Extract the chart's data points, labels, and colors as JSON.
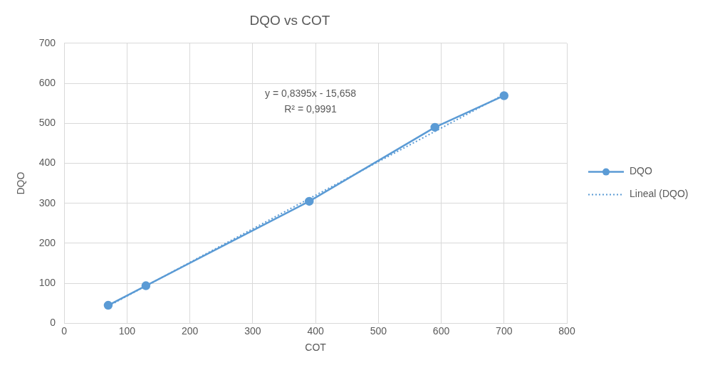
{
  "chart_data": {
    "type": "scatter",
    "title": "DQO vs COT",
    "xlabel": "COT",
    "ylabel": "DQO",
    "xlim": [
      0,
      800
    ],
    "xticks": [
      0,
      100,
      200,
      300,
      400,
      500,
      600,
      700,
      800
    ],
    "ylim": [
      0,
      700
    ],
    "yticks": [
      0,
      100,
      200,
      300,
      400,
      500,
      600,
      700
    ],
    "grid": true,
    "legend": "right",
    "series": [
      {
        "name": "DQO",
        "type": "line",
        "color": "#5b9bd5",
        "marker": "circle",
        "line_style": "solid",
        "x": [
          70,
          130,
          390,
          590,
          700
        ],
        "values": [
          45,
          94,
          305,
          490,
          569
        ]
      },
      {
        "name": "Lineal (DQO)",
        "type": "line",
        "color": "#5b9bd5",
        "marker": "none",
        "line_style": "dotted",
        "x": [
          70,
          700
        ],
        "values": [
          43,
          572
        ]
      }
    ],
    "annotations": [
      "y = 0,8395x - 15,658",
      "R² = 0,9991"
    ]
  }
}
